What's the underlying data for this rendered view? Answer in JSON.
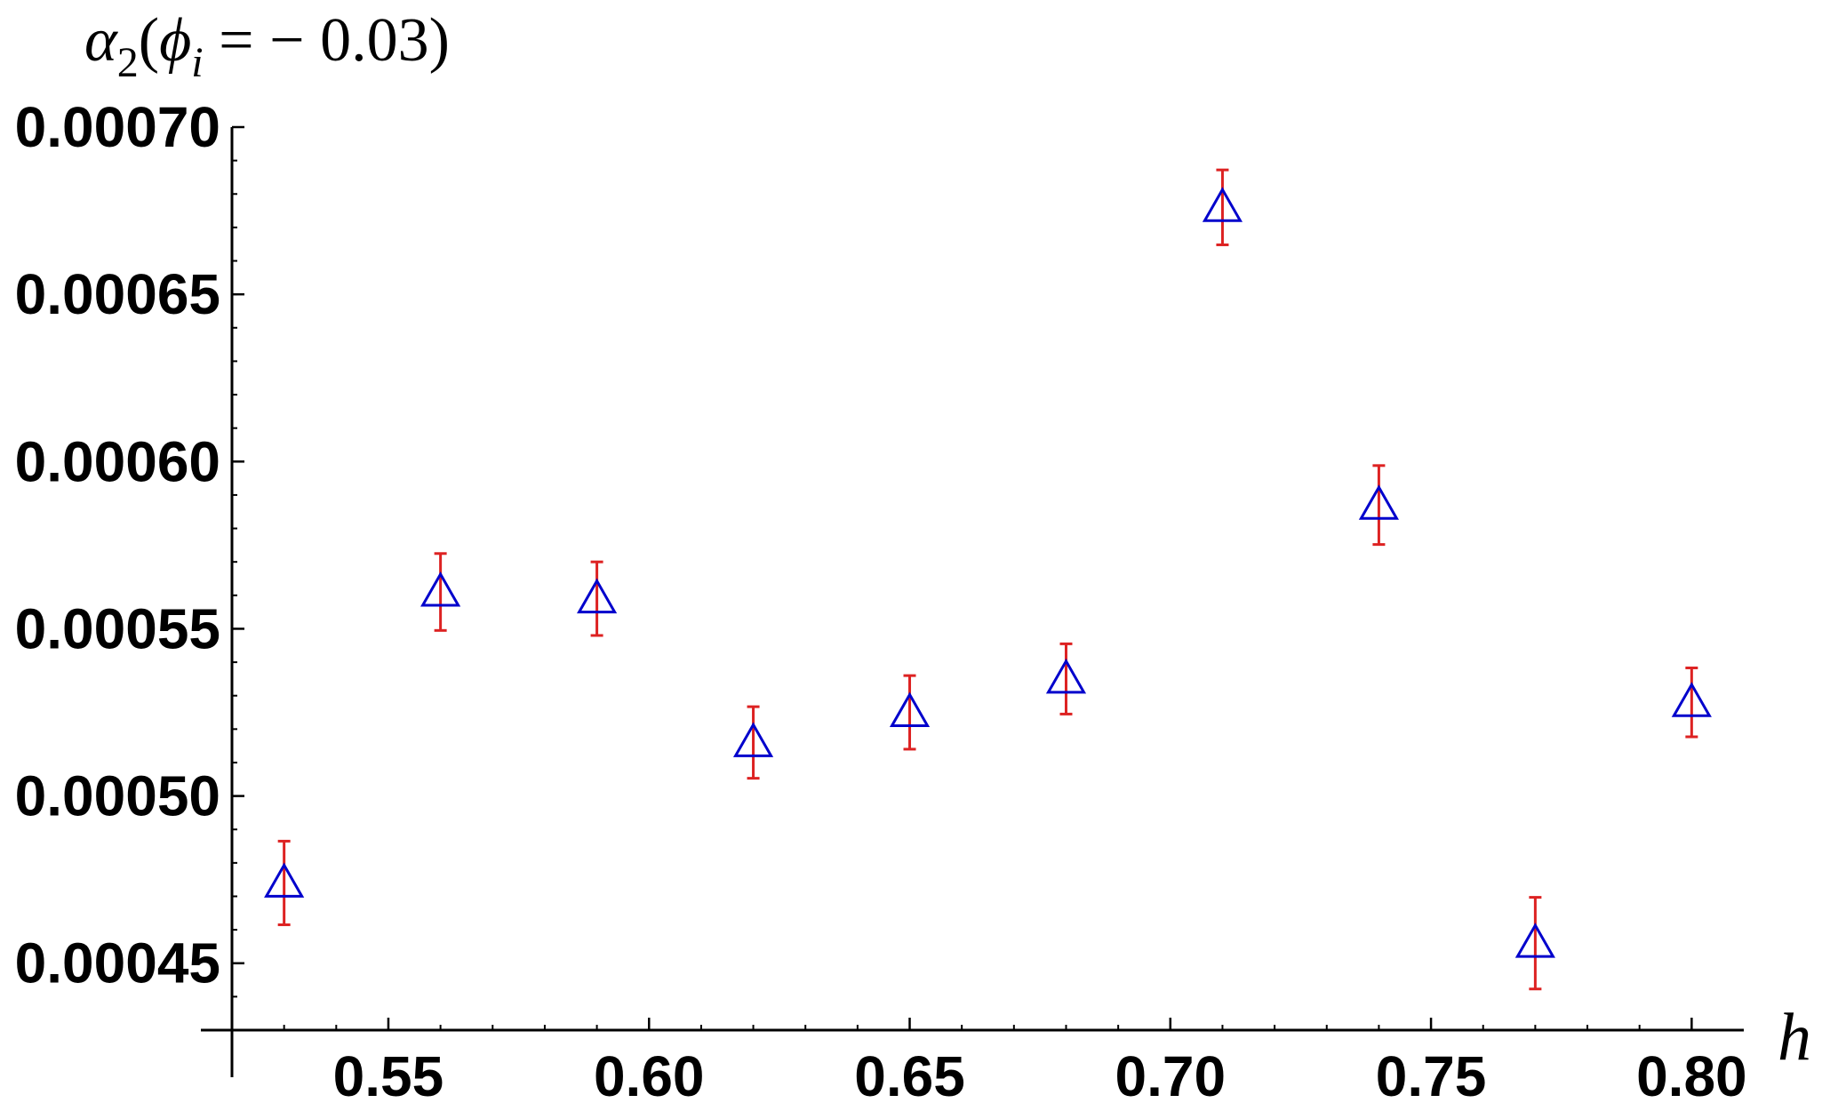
{
  "chart_data": {
    "type": "scatter",
    "title": "",
    "ylabel_parts": {
      "symbol": "α",
      "sub": "2",
      "open": "(",
      "phi": "ϕ",
      "phi_sub": "i",
      "rest": " = − 0.03)"
    },
    "xlabel": "h",
    "xlim": [
      0.52,
      0.81
    ],
    "ylim": [
      0.00043,
      0.0007
    ],
    "xticks": [
      0.55,
      0.6,
      0.65,
      0.7,
      0.75,
      0.8
    ],
    "xtick_labels": [
      "0.55",
      "0.60",
      "0.65",
      "0.70",
      "0.75",
      "0.80"
    ],
    "yticks": [
      0.00045,
      0.0005,
      0.00055,
      0.0006,
      0.00065,
      0.0007
    ],
    "ytick_labels": [
      "0.00045",
      "0.00050",
      "0.00055",
      "0.00060",
      "0.00065",
      "0.00070"
    ],
    "marker": "open-triangle",
    "marker_color": "#0000cc",
    "errorbar_color": "#dd2222",
    "points": [
      {
        "x": 0.53,
        "y": 0.000474,
        "err": 1.25e-05
      },
      {
        "x": 0.56,
        "y": 0.000561,
        "err": 1.15e-05
      },
      {
        "x": 0.59,
        "y": 0.000559,
        "err": 1.1e-05
      },
      {
        "x": 0.62,
        "y": 0.000516,
        "err": 1.07e-05
      },
      {
        "x": 0.65,
        "y": 0.000525,
        "err": 1.1e-05
      },
      {
        "x": 0.68,
        "y": 0.000535,
        "err": 1.05e-05
      },
      {
        "x": 0.71,
        "y": 0.000676,
        "err": 1.12e-05
      },
      {
        "x": 0.74,
        "y": 0.000587,
        "err": 1.18e-05
      },
      {
        "x": 0.77,
        "y": 0.000456,
        "err": 1.37e-05
      },
      {
        "x": 0.8,
        "y": 0.000528,
        "err": 1.03e-05
      }
    ]
  }
}
